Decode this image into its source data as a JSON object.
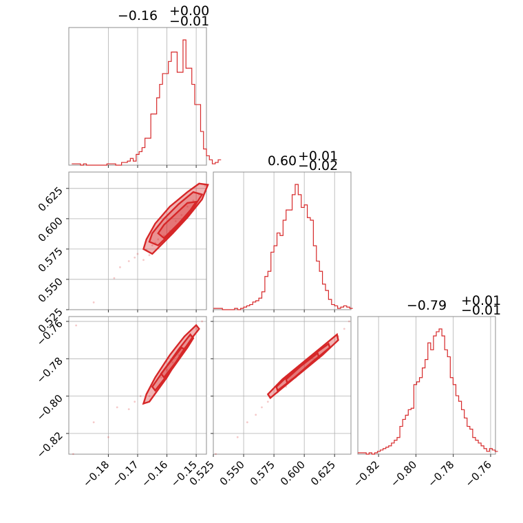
{
  "chart_data": {
    "type": "corner",
    "color": "#d62728",
    "grid": true,
    "params": [
      {
        "title_main": "−0.16",
        "title_plus": "+0.00",
        "title_minus": "−0.01",
        "range": [
          -0.1935,
          -0.1465
        ],
        "ticks": [
          -0.18,
          -0.17,
          -0.16,
          -0.15
        ],
        "tick_labels": [
          "−0.18",
          "−0.17",
          "−0.16",
          "−0.15"
        ],
        "hist_start": -0.1925,
        "hist_step": 0.001,
        "hist": [
          0.01,
          0.01,
          0.01,
          0.0,
          0.01,
          0.0,
          0.0,
          0.0,
          0.0,
          0.0,
          0.0,
          0.0,
          0.01,
          0.01,
          0.01,
          0.0,
          0.0,
          0.02,
          0.02,
          0.03,
          0.05,
          0.03,
          0.08,
          0.1,
          0.13,
          0.2,
          0.2,
          0.38,
          0.38,
          0.5,
          0.6,
          0.68,
          0.68,
          0.77,
          0.84,
          0.84,
          0.69,
          0.69,
          0.93,
          0.72,
          0.72,
          0.6,
          0.45,
          0.45,
          0.25,
          0.12,
          0.07,
          0.04,
          0.01,
          0.02,
          0.04
        ]
      },
      {
        "title_main": "0.60",
        "title_plus": "+0.01",
        "title_minus": "−0.02",
        "range": [
          0.525,
          0.6385
        ],
        "ticks": [
          0.525,
          0.55,
          0.575,
          0.6,
          0.625
        ],
        "tick_labels": [
          "0.525",
          "0.550",
          "0.575",
          "0.600",
          "0.625"
        ],
        "hist_start": 0.525,
        "hist_step": 0.0025,
        "hist": [
          0.01,
          0.01,
          0.01,
          0.0,
          0.0,
          0.0,
          0.0,
          0.01,
          0.0,
          0.01,
          0.02,
          0.03,
          0.04,
          0.06,
          0.07,
          0.09,
          0.14,
          0.26,
          0.3,
          0.45,
          0.5,
          0.6,
          0.58,
          0.7,
          0.78,
          0.78,
          0.9,
          0.98,
          0.9,
          0.8,
          0.82,
          0.72,
          0.7,
          0.5,
          0.38,
          0.3,
          0.2,
          0.15,
          0.08,
          0.04,
          0.03,
          0.01,
          0.02,
          0.03,
          0.02,
          0.01
        ]
      },
      {
        "title_main": "−0.79",
        "title_plus": "+0.01",
        "title_minus": "−0.01",
        "range": [
          -0.8311,
          -0.7574
        ],
        "ticks": [
          -0.82,
          -0.8,
          -0.78,
          -0.76
        ],
        "tick_labels": [
          "−0.82",
          "−0.80",
          "−0.78",
          "−0.76"
        ],
        "hist_start": -0.8311,
        "hist_step": 0.0015,
        "hist": [
          0.01,
          0.01,
          0.01,
          0.0,
          0.01,
          0.0,
          0.01,
          0.02,
          0.03,
          0.04,
          0.05,
          0.06,
          0.08,
          0.1,
          0.12,
          0.2,
          0.25,
          0.28,
          0.32,
          0.33,
          0.5,
          0.52,
          0.55,
          0.62,
          0.68,
          0.8,
          0.75,
          0.85,
          0.88,
          0.9,
          0.85,
          0.75,
          0.7,
          0.55,
          0.5,
          0.42,
          0.38,
          0.32,
          0.26,
          0.2,
          0.18,
          0.12,
          0.1,
          0.08,
          0.06,
          0.04,
          0.02,
          0.04,
          0.03,
          0.02
        ]
      }
    ],
    "pairs": [
      {
        "row": 1,
        "col": 0,
        "samples": [
          [
            -0.191,
            0.512
          ],
          [
            -0.185,
            0.531
          ],
          [
            -0.178,
            0.551
          ],
          [
            -0.176,
            0.56
          ],
          [
            -0.173,
            0.565
          ],
          [
            -0.171,
            0.568
          ],
          [
            -0.17,
            0.571
          ],
          [
            -0.168,
            0.566
          ],
          [
            -0.167,
            0.574
          ],
          [
            -0.166,
            0.57
          ],
          [
            -0.164,
            0.58
          ],
          [
            -0.163,
            0.583
          ],
          [
            -0.165,
            0.578
          ],
          [
            -0.161,
            0.586
          ],
          [
            -0.159,
            0.59
          ],
          [
            -0.157,
            0.598
          ],
          [
            -0.155,
            0.603
          ],
          [
            -0.153,
            0.61
          ],
          [
            -0.151,
            0.615
          ],
          [
            -0.149,
            0.62
          ],
          [
            -0.147,
            0.627
          ]
        ],
        "contours": [
          [
            [
              -0.165,
              0.571
            ],
            [
              -0.158,
              0.588
            ],
            [
              -0.153,
              0.601
            ],
            [
              -0.148,
              0.616
            ],
            [
              -0.146,
              0.628
            ],
            [
              -0.149,
              0.629
            ],
            [
              -0.153,
              0.622
            ],
            [
              -0.159,
              0.61
            ],
            [
              -0.164,
              0.596
            ],
            [
              -0.167,
              0.583
            ],
            [
              -0.168,
              0.575
            ]
          ],
          [
            [
              -0.163,
              0.578
            ],
            [
              -0.157,
              0.592
            ],
            [
              -0.152,
              0.605
            ],
            [
              -0.148,
              0.62
            ],
            [
              -0.151,
              0.622
            ],
            [
              -0.156,
              0.612
            ],
            [
              -0.161,
              0.6
            ],
            [
              -0.165,
              0.588
            ],
            [
              -0.166,
              0.581
            ]
          ],
          [
            [
              -0.161,
              0.584
            ],
            [
              -0.156,
              0.596
            ],
            [
              -0.152,
              0.607
            ],
            [
              -0.15,
              0.614
            ],
            [
              -0.153,
              0.613
            ],
            [
              -0.157,
              0.604
            ],
            [
              -0.161,
              0.595
            ],
            [
              -0.163,
              0.588
            ]
          ]
        ]
      },
      {
        "row": 2,
        "col": 0,
        "samples": [
          [
            -0.192,
            -0.831
          ],
          [
            -0.185,
            -0.814
          ],
          [
            -0.18,
            -0.822
          ],
          [
            -0.177,
            -0.806
          ],
          [
            -0.173,
            -0.807
          ],
          [
            -0.171,
            -0.803
          ],
          [
            -0.169,
            -0.8
          ],
          [
            -0.168,
            -0.804
          ],
          [
            -0.166,
            -0.8
          ],
          [
            -0.164,
            -0.797
          ],
          [
            -0.162,
            -0.79
          ],
          [
            -0.16,
            -0.786
          ],
          [
            -0.158,
            -0.782
          ],
          [
            -0.156,
            -0.778
          ],
          [
            -0.154,
            -0.774
          ],
          [
            -0.152,
            -0.768
          ],
          [
            -0.15,
            -0.764
          ],
          [
            -0.148,
            -0.76
          ]
        ],
        "contours": [
          [
            [
              -0.166,
              -0.803
            ],
            [
              -0.16,
              -0.79
            ],
            [
              -0.155,
              -0.777
            ],
            [
              -0.151,
              -0.768
            ],
            [
              -0.149,
              -0.764
            ],
            [
              -0.15,
              -0.762
            ],
            [
              -0.154,
              -0.768
            ],
            [
              -0.159,
              -0.778
            ],
            [
              -0.164,
              -0.79
            ],
            [
              -0.167,
              -0.799
            ],
            [
              -0.168,
              -0.804
            ]
          ],
          [
            [
              -0.164,
              -0.797
            ],
            [
              -0.158,
              -0.785
            ],
            [
              -0.153,
              -0.774
            ],
            [
              -0.151,
              -0.769
            ],
            [
              -0.152,
              -0.767
            ],
            [
              -0.156,
              -0.775
            ],
            [
              -0.161,
              -0.786
            ],
            [
              -0.165,
              -0.795
            ]
          ],
          [
            [
              -0.161,
              -0.79
            ],
            [
              -0.157,
              -0.782
            ],
            [
              -0.154,
              -0.775
            ],
            [
              -0.155,
              -0.774
            ],
            [
              -0.158,
              -0.78
            ],
            [
              -0.162,
              -0.788
            ]
          ]
        ]
      },
      {
        "row": 2,
        "col": 1,
        "samples": [
          [
            0.527,
            -0.831
          ],
          [
            0.545,
            -0.822
          ],
          [
            0.553,
            -0.814
          ],
          [
            0.56,
            -0.81
          ],
          [
            0.565,
            -0.806
          ],
          [
            0.57,
            -0.803
          ],
          [
            0.578,
            -0.798
          ],
          [
            0.585,
            -0.795
          ],
          [
            0.593,
            -0.79
          ],
          [
            0.6,
            -0.786
          ],
          [
            0.607,
            -0.782
          ],
          [
            0.614,
            -0.778
          ],
          [
            0.621,
            -0.773
          ],
          [
            0.628,
            -0.768
          ],
          [
            0.633,
            -0.764
          ],
          [
            0.637,
            -0.76
          ]
        ],
        "contours": [
          [
            [
              0.572,
              -0.801
            ],
            [
              0.585,
              -0.794
            ],
            [
              0.6,
              -0.786
            ],
            [
              0.615,
              -0.778
            ],
            [
              0.628,
              -0.77
            ],
            [
              0.627,
              -0.767
            ],
            [
              0.612,
              -0.775
            ],
            [
              0.597,
              -0.783
            ],
            [
              0.582,
              -0.791
            ],
            [
              0.57,
              -0.799
            ]
          ],
          [
            [
              0.578,
              -0.797
            ],
            [
              0.592,
              -0.79
            ],
            [
              0.606,
              -0.782
            ],
            [
              0.621,
              -0.774
            ],
            [
              0.62,
              -0.772
            ],
            [
              0.605,
              -0.779
            ],
            [
              0.59,
              -0.787
            ],
            [
              0.577,
              -0.795
            ]
          ],
          [
            [
              0.586,
              -0.793
            ],
            [
              0.598,
              -0.787
            ],
            [
              0.612,
              -0.779
            ],
            [
              0.611,
              -0.777
            ],
            [
              0.597,
              -0.784
            ],
            [
              0.585,
              -0.791
            ]
          ]
        ]
      }
    ]
  }
}
